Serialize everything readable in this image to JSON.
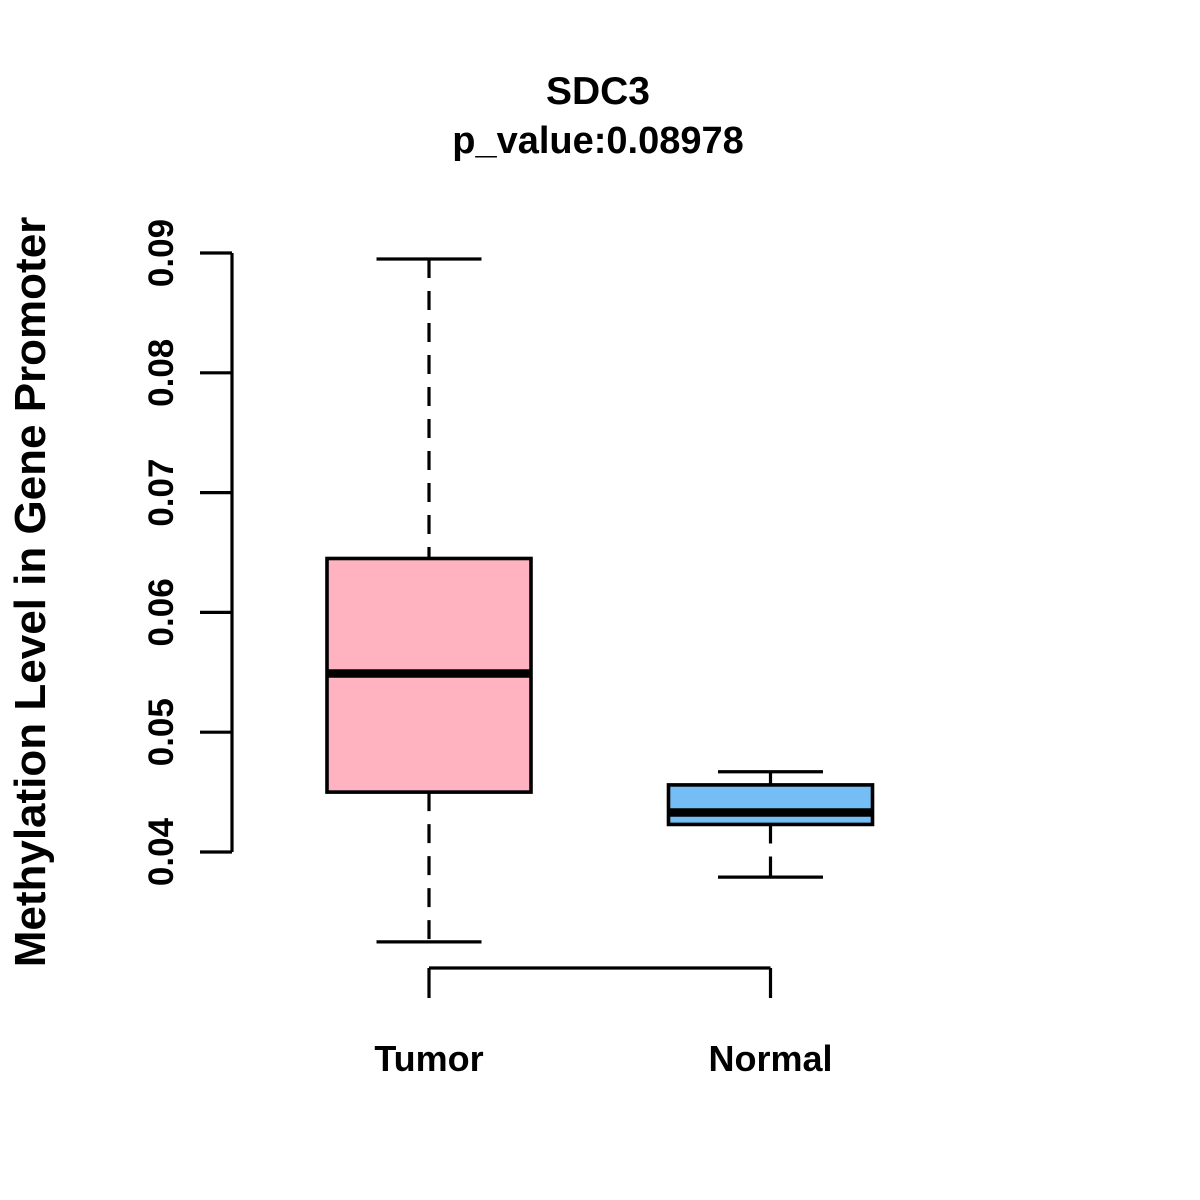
{
  "chart_data": {
    "type": "boxplot",
    "title": "SDC3",
    "subtitle": "p_value:0.08978",
    "ylabel": "Methylation Level in Gene Promoter",
    "xlabel": "",
    "ylim": [
      0.04,
      0.09
    ],
    "ytick_labels": [
      "0.04",
      "0.05",
      "0.06",
      "0.07",
      "0.08",
      "0.09"
    ],
    "ytick_values": [
      0.04,
      0.05,
      0.06,
      0.07,
      0.08,
      0.09
    ],
    "grid": "off",
    "legend": "none",
    "categories": [
      "Tumor",
      "Normal"
    ],
    "series": [
      {
        "name": "Tumor",
        "color": "#FFB3C1",
        "whisker_low": 0.0325,
        "q1": 0.045,
        "median": 0.0549,
        "q3": 0.0645,
        "whisker_high": 0.0895
      },
      {
        "name": "Normal",
        "color": "#74BEF5",
        "whisker_low": 0.0379,
        "q1": 0.0423,
        "median": 0.0433,
        "q3": 0.0456,
        "whisker_high": 0.0467
      }
    ],
    "colors": {
      "axis": "#000000",
      "text": "#000000",
      "background": "#FFFFFF"
    }
  }
}
